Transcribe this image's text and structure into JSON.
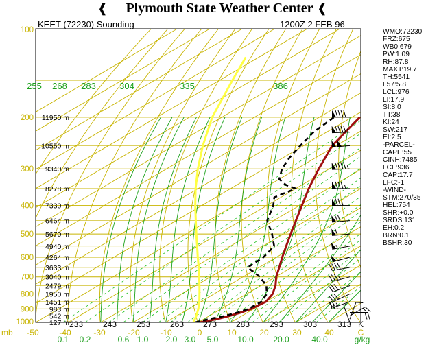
{
  "header": {
    "title": "Plymouth State Weather Center",
    "logo_left_icon": "weathervane-arrow-icon",
    "logo_right_icon": "weathervane-arrow-icon"
  },
  "chart_data": {
    "type": "skew-t",
    "station_label": "KEET (72230) Sounding",
    "time_label": "1200Z   2 FEB 96",
    "pressure_axis_hpa": [
      100,
      200,
      300,
      400,
      500,
      600,
      700,
      800,
      900,
      1000
    ],
    "pressure_range_hpa": [
      1000,
      100
    ],
    "temperature_axis_c": [
      -50,
      -40,
      -30,
      -20,
      -10,
      0,
      10,
      20,
      30,
      40
    ],
    "temperature_tick_labels": [
      "-50",
      "-40",
      "-30",
      "-20",
      "-10",
      "0",
      "10",
      "20",
      "30",
      "40",
      "C"
    ],
    "potential_temp_labels_bottom": [
      "233",
      "243",
      "253",
      "263",
      "273",
      "283",
      "293",
      "303",
      "313",
      "K"
    ],
    "theta_e_labels": [
      "255",
      "268",
      "283",
      "304",
      "335",
      "386"
    ],
    "mixing_ratio_labels": [
      "0.1",
      "0.2",
      "0.6",
      "1.0",
      "2.0",
      "3.0",
      "5.0",
      "10.0",
      "20.0",
      "40.0",
      "g/kg"
    ],
    "pressure_axis_unit": "mb",
    "height_labels": [
      {
        "text": "11950 m",
        "p": 200
      },
      {
        "text": "10550 m",
        "p": 250
      },
      {
        "text": "9340 m",
        "p": 300
      },
      {
        "text": "8278 m",
        "p": 350
      },
      {
        "text": "7330 m",
        "p": 400
      },
      {
        "text": "6464 m",
        "p": 450
      },
      {
        "text": "5670 m",
        "p": 500
      },
      {
        "text": "4940 m",
        "p": 550
      },
      {
        "text": "4264 m",
        "p": 600
      },
      {
        "text": "3633 m",
        "p": 650
      },
      {
        "text": "3040 m",
        "p": 700
      },
      {
        "text": "2479 m",
        "p": 750
      },
      {
        "text": "1950 m",
        "p": 800
      },
      {
        "text": "1451 m",
        "p": 850
      },
      {
        "text": "983 m",
        "p": 900
      },
      {
        "text": "542 m",
        "p": 950
      },
      {
        "text": "127 m",
        "p": 1000
      }
    ],
    "series": [
      {
        "name": "Temperature",
        "color": "#a01010",
        "points": [
          [
            1000,
            0.5
          ],
          [
            975,
            4.0
          ],
          [
            950,
            6.2
          ],
          [
            925,
            8.0
          ],
          [
            900,
            9.2
          ],
          [
            850,
            10.0
          ],
          [
            800,
            8.0
          ],
          [
            750,
            4.6
          ],
          [
            700,
            0.2
          ],
          [
            650,
            -3.8
          ],
          [
            600,
            -8.2
          ],
          [
            550,
            -12.8
          ],
          [
            500,
            -17.8
          ],
          [
            450,
            -23.2
          ],
          [
            400,
            -29.2
          ],
          [
            350,
            -36.0
          ],
          [
            300,
            -43.2
          ],
          [
            250,
            -51.2
          ],
          [
            200,
            -57.6
          ]
        ]
      },
      {
        "name": "Dewpoint",
        "color": "#000000",
        "dash": true,
        "points": [
          [
            1000,
            -1.0
          ],
          [
            975,
            1.5
          ],
          [
            950,
            4.8
          ],
          [
            925,
            7.0
          ],
          [
            900,
            8.4
          ],
          [
            850,
            8.6
          ],
          [
            800,
            6.2
          ],
          [
            750,
            1.8
          ],
          [
            700,
            -4.8
          ],
          [
            650,
            -13.5
          ],
          [
            600,
            -14.0
          ],
          [
            550,
            -16.5
          ],
          [
            500,
            -23.5
          ],
          [
            450,
            -32.0
          ],
          [
            400,
            -38.0
          ],
          [
            375,
            -42.0
          ],
          [
            350,
            -40.0
          ],
          [
            340,
            -45.0
          ],
          [
            325,
            -50.0
          ],
          [
            300,
            -54.5
          ],
          [
            275,
            -58.0
          ],
          [
            250,
            -61.0
          ],
          [
            225,
            -64.0
          ],
          [
            200,
            -65.5
          ]
        ]
      },
      {
        "name": "Parcel",
        "color": "#ffff44",
        "points": [
          [
            1000,
            -1.5
          ],
          [
            950,
            -4.0
          ],
          [
            900,
            -7.0
          ],
          [
            850,
            -10.5
          ],
          [
            800,
            -14.5
          ],
          [
            750,
            -18.8
          ],
          [
            700,
            -23.5
          ],
          [
            650,
            -28.6
          ],
          [
            600,
            -34.2
          ],
          [
            550,
            -40.2
          ],
          [
            500,
            -46.8
          ],
          [
            450,
            -54.0
          ],
          [
            400,
            -62.0
          ],
          [
            350,
            -70.8
          ],
          [
            300,
            -80.4
          ],
          [
            250,
            -91.0
          ],
          [
            200,
            -103.0
          ],
          [
            150,
            -116.0
          ],
          [
            125,
            -124.0
          ]
        ]
      }
    ],
    "wind_barbs": [
      {
        "p": 1000,
        "dir": 340,
        "spd": 5
      },
      {
        "p": 975,
        "dir": 20,
        "spd": 10
      },
      {
        "p": 950,
        "dir": 60,
        "spd": 15
      },
      {
        "p": 925,
        "dir": 90,
        "spd": 20
      },
      {
        "p": 900,
        "dir": 270,
        "spd": 25
      },
      {
        "p": 850,
        "dir": 250,
        "spd": 25
      },
      {
        "p": 800,
        "dir": 245,
        "spd": 30
      },
      {
        "p": 750,
        "dir": 250,
        "spd": 30
      },
      {
        "p": 700,
        "dir": 255,
        "spd": 35
      },
      {
        "p": 650,
        "dir": 260,
        "spd": 40
      },
      {
        "p": 600,
        "dir": 255,
        "spd": 50
      },
      {
        "p": 550,
        "dir": 260,
        "spd": 55
      },
      {
        "p": 500,
        "dir": 265,
        "spd": 60
      },
      {
        "p": 450,
        "dir": 265,
        "spd": 70
      },
      {
        "p": 400,
        "dir": 270,
        "spd": 75
      },
      {
        "p": 350,
        "dir": 270,
        "spd": 85
      },
      {
        "p": 300,
        "dir": 268,
        "spd": 95
      },
      {
        "p": 250,
        "dir": 265,
        "spd": 100
      },
      {
        "p": 225,
        "dir": 268,
        "spd": 95
      },
      {
        "p": 200,
        "dir": 270,
        "spd": 90
      }
    ],
    "indices": [
      "WMO:72230",
      "FRZ:675",
      "WB0:679",
      "PW:1.09",
      "RH:87.8",
      "MAXT:19.7",
      "TH:5541",
      "L57:5.8",
      "LCL:976",
      "LI:17.9",
      "SI:8.0",
      "TT:38",
      "KI:24",
      "SW:217",
      "EI:2.5",
      "-PARCEL-",
      "CAPE:55",
      "CINH:7485",
      "LCL:936",
      "CAP:17.7",
      "LFC:-1",
      "-WIND-",
      "STM:270/35",
      "HEL:754",
      "SHR:+0.0",
      "SRDS:131",
      "EH:0.2",
      "BRN:0.1",
      "BSHR:30"
    ],
    "colors": {
      "isobar": "#c8b400",
      "isotherm": "#c8b400",
      "dry_adiabat": "#c8b400",
      "moist_adiabat": "#1aa01a",
      "mixing_ratio": "#20c020",
      "axis_label": "#c8b400",
      "mixing_label": "#20a020"
    }
  }
}
